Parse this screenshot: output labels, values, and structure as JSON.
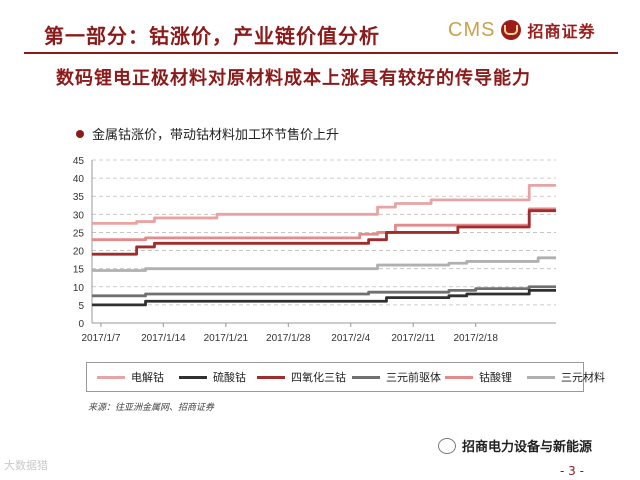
{
  "header": {
    "title": "第一部分：钴涨价，产业链价值分析",
    "logo_cms": "CMS",
    "logo_text": "招商证券"
  },
  "subtitle": "数码锂电正极材料对原材料成本上涨具有较好的传导能力",
  "note": "金属钴涨价，带动钴材料加工环节售价上升",
  "source": "来源：往亚洲金属网、招商证券",
  "wechat": "招商电力设备与新能源",
  "page_number": "- 3 -",
  "watermark": "大数据猎",
  "chart_data": {
    "type": "line",
    "title": "",
    "xlabel": "",
    "ylabel": "",
    "ylim": [
      0,
      45
    ],
    "yticks": [
      0,
      5,
      10,
      15,
      20,
      25,
      30,
      35,
      40,
      45
    ],
    "xlim": [
      "2017-01-06",
      "2017-02-27"
    ],
    "xtick_labels": [
      "2017/1/7",
      "2017/1/14",
      "2017/1/21",
      "2017/1/28",
      "2017/2/4",
      "2017/2/11",
      "2017/2/18"
    ],
    "grid": "horizontal dashed",
    "legend_position": "bottom",
    "series": [
      {
        "name": "电解钴",
        "color": "#e8a4a4",
        "x": [
          "2017-01-06",
          "2017-01-09",
          "2017-01-11",
          "2017-01-13",
          "2017-01-20",
          "2017-02-05",
          "2017-02-07",
          "2017-02-09",
          "2017-02-13",
          "2017-02-17",
          "2017-02-24",
          "2017-02-27"
        ],
        "y": [
          27.5,
          27.5,
          28,
          29,
          30,
          30,
          32,
          33,
          34,
          34,
          38,
          38
        ]
      },
      {
        "name": "钴酸锂",
        "color": "#e48a8a",
        "x": [
          "2017-01-06",
          "2017-01-10",
          "2017-01-12",
          "2017-02-03",
          "2017-02-05",
          "2017-02-07",
          "2017-02-09",
          "2017-02-17",
          "2017-02-21",
          "2017-02-24",
          "2017-02-27"
        ],
        "y": [
          23,
          23,
          23.5,
          23.5,
          24.5,
          25,
          27,
          27,
          27,
          31.5,
          31.5
        ]
      },
      {
        "name": "四氧化三钴",
        "color": "#a02c2c",
        "x": [
          "2017-01-06",
          "2017-01-10",
          "2017-01-11",
          "2017-01-13",
          "2017-02-04",
          "2017-02-06",
          "2017-02-08",
          "2017-02-15",
          "2017-02-16",
          "2017-02-24",
          "2017-02-27"
        ],
        "y": [
          19,
          19,
          21,
          22,
          22,
          23,
          25,
          25,
          26.5,
          31,
          31
        ]
      },
      {
        "name": "三元材料",
        "color": "#b0b0b0",
        "x": [
          "2017-01-06",
          "2017-01-10",
          "2017-01-12",
          "2017-02-05",
          "2017-02-07",
          "2017-02-15",
          "2017-02-17",
          "2017-02-25",
          "2017-02-27"
        ],
        "y": [
          14.5,
          14.5,
          15,
          15,
          16,
          16.5,
          17,
          18,
          18
        ]
      },
      {
        "name": "三元前驱体",
        "color": "#707070",
        "x": [
          "2017-01-06",
          "2017-01-10",
          "2017-01-12",
          "2017-02-04",
          "2017-02-06",
          "2017-02-15",
          "2017-02-18",
          "2017-02-24",
          "2017-02-27"
        ],
        "y": [
          7.5,
          7.5,
          8,
          8,
          8.5,
          9,
          9.5,
          10,
          10
        ]
      },
      {
        "name": "硫酸钴",
        "color": "#303030",
        "x": [
          "2017-01-06",
          "2017-01-10",
          "2017-01-12",
          "2017-02-03",
          "2017-02-08",
          "2017-02-15",
          "2017-02-17",
          "2017-02-24",
          "2017-02-27"
        ],
        "y": [
          5,
          5,
          6,
          6,
          7,
          7.5,
          8,
          9,
          9
        ]
      }
    ],
    "legend_order": [
      "电解钴",
      "硫酸钴",
      "四氧化三钴",
      "三元前驱体",
      "钴酸锂",
      "三元材料"
    ]
  }
}
